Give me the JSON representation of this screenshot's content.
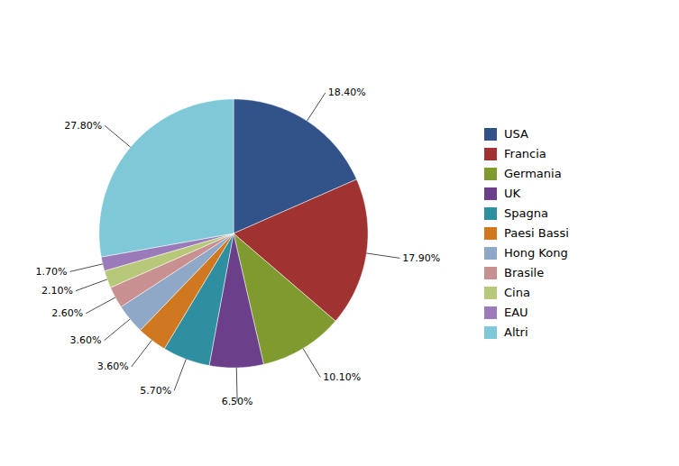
{
  "chart_data": {
    "type": "pie",
    "categories": [
      "USA",
      "Francia",
      "Germania",
      "UK",
      "Spagna",
      "Paesi Bassi",
      "Hong Kong",
      "Brasile",
      "Cina",
      "EAU",
      "Altri"
    ],
    "values": [
      18.4,
      17.9,
      10.1,
      6.5,
      5.7,
      3.6,
      3.6,
      2.6,
      2.1,
      1.7,
      27.8
    ],
    "value_labels": [
      "18.40%",
      "17.90%",
      "10.10%",
      "6.50%",
      "5.70%",
      "3.60%",
      "3.60%",
      "2.60%",
      "2.10%",
      "1.70%",
      "27.80%"
    ],
    "colors": [
      "#31538a",
      "#a03232",
      "#7f9a2e",
      "#6b3f8a",
      "#2e8fa0",
      "#d07820",
      "#8fa8c8",
      "#c89090",
      "#b8c87a",
      "#9a7ab8",
      "#7ec8d8"
    ],
    "data_labels": true,
    "legend": "right"
  }
}
